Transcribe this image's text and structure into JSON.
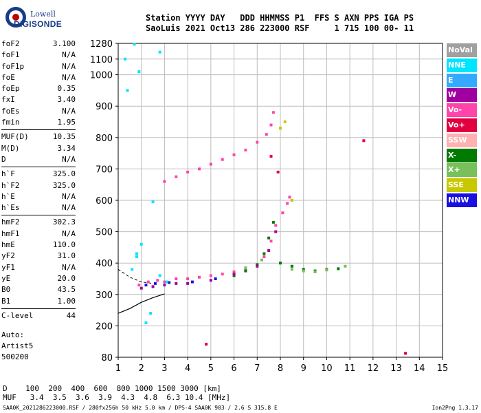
{
  "logo": {
    "line1": "Lowell",
    "line2": "DIGISONDE"
  },
  "header": {
    "line1": "Station YYYY DAY   DDD HHMMSS P1  FFS S AXN PPS IGA PS",
    "line2": "SaoLuis 2021 Oct13 286 223000 RSF     1 715 100 00- 11"
  },
  "params_group1": [
    {
      "label": "foF2",
      "value": "3.100"
    },
    {
      "label": "foF1",
      "value": "N/A"
    },
    {
      "label": "foF1p",
      "value": "N/A"
    },
    {
      "label": "foE",
      "value": "N/A"
    },
    {
      "label": "foEp",
      "value": "0.35"
    },
    {
      "label": "fxI",
      "value": "3.40"
    },
    {
      "label": "foEs",
      "value": "N/A"
    },
    {
      "label": "fmin",
      "value": "1.95"
    }
  ],
  "params_group2": [
    {
      "label": "MUF(D)",
      "value": "10.35"
    },
    {
      "label": "M(D)",
      "value": "3.34"
    },
    {
      "label": "D",
      "value": "N/A"
    }
  ],
  "params_group3": [
    {
      "label": "h`F",
      "value": "325.0"
    },
    {
      "label": "h`F2",
      "value": "325.0"
    },
    {
      "label": "h`E",
      "value": "N/A"
    },
    {
      "label": "h`Es",
      "value": "N/A"
    }
  ],
  "params_group4": [
    {
      "label": "hmF2",
      "value": "302.3"
    },
    {
      "label": "hmF1",
      "value": "N/A"
    },
    {
      "label": "hmE",
      "value": "110.0"
    },
    {
      "label": "yF2",
      "value": "31.0"
    },
    {
      "label": "yF1",
      "value": "N/A"
    },
    {
      "label": "yE",
      "value": "20.0"
    },
    {
      "label": "B0",
      "value": "43.5"
    },
    {
      "label": "B1",
      "value": "1.00"
    }
  ],
  "params_group5": [
    {
      "label": "C-level",
      "value": "44"
    }
  ],
  "autoscale": {
    "line1": "Auto:",
    "line2": "Artist5",
    "line3": "500200"
  },
  "legend": [
    {
      "label": "NoVal",
      "color": "#a0a0a0"
    },
    {
      "label": "NNE",
      "color": "#00e5ff"
    },
    {
      "label": "E",
      "color": "#33aaff"
    },
    {
      "label": "W",
      "color": "#a000a0"
    },
    {
      "label": "Vo-",
      "color": "#ff44aa"
    },
    {
      "label": "Vo+",
      "color": "#e00040"
    },
    {
      "label": "SSW",
      "color": "#ffb0b0"
    },
    {
      "label": "X-",
      "color": "#007a00"
    },
    {
      "label": "X+",
      "color": "#77c05a"
    },
    {
      "label": "SSE",
      "color": "#c8c800"
    },
    {
      "label": "NNW",
      "color": "#1a10e0"
    }
  ],
  "muf_table": {
    "line1": "D    100  200  400  600  800 1000 1500 3000 [km]",
    "line2": "MUF   3.4  3.5  3.6  3.9  4.3  4.8  6.3 10.4 [MHz]"
  },
  "footer": {
    "left": "SAA0K_2021286223000.RSF / 280fx256h 50 kHz 5.0 km / DPS-4 SAA0K 903 / 2.6 S 315.8 E",
    "right": "Ion2Png 1.3.17"
  },
  "chart_data": {
    "type": "scatter",
    "xlabel": "",
    "ylabel": "",
    "xlim": [
      1,
      15
    ],
    "ylim": [
      80,
      1280
    ],
    "x_ticks": [
      1,
      2,
      3,
      4,
      5,
      6,
      7,
      8,
      9,
      10,
      11,
      12,
      13,
      14,
      15
    ],
    "y_ticks": [
      80,
      200,
      300,
      400,
      500,
      600,
      700,
      800,
      900,
      1000,
      1100,
      1280
    ],
    "grid": true,
    "y_scale": "nonlinear",
    "y_axis_map": [
      [
        80,
        0
      ],
      [
        200,
        0.1
      ],
      [
        300,
        0.2
      ],
      [
        400,
        0.3
      ],
      [
        500,
        0.4
      ],
      [
        600,
        0.5
      ],
      [
        700,
        0.6
      ],
      [
        800,
        0.7
      ],
      [
        900,
        0.8
      ],
      [
        1000,
        0.9
      ],
      [
        1100,
        0.95
      ],
      [
        1280,
        1.0
      ]
    ],
    "series": [
      {
        "color": "#ff44aa",
        "points": [
          [
            1.9,
            330
          ],
          [
            2.3,
            340
          ],
          [
            2.7,
            345
          ],
          [
            3.0,
            340
          ],
          [
            3.5,
            350
          ],
          [
            4.0,
            350
          ],
          [
            4.5,
            355
          ],
          [
            5.0,
            360
          ],
          [
            5.5,
            365
          ],
          [
            6.0,
            372
          ],
          [
            6.5,
            380
          ],
          [
            7.0,
            395
          ],
          [
            7.3,
            420
          ],
          [
            7.6,
            470
          ],
          [
            7.8,
            520
          ],
          [
            8.1,
            560
          ],
          [
            8.3,
            590
          ],
          [
            8.4,
            610
          ]
        ]
      },
      {
        "color": "#ff44aa",
        "points": [
          [
            3.0,
            660
          ],
          [
            3.5,
            675
          ],
          [
            4.0,
            690
          ],
          [
            4.5,
            700
          ],
          [
            5.0,
            715
          ],
          [
            5.5,
            730
          ],
          [
            6.0,
            745
          ],
          [
            6.5,
            760
          ],
          [
            7.0,
            785
          ],
          [
            7.4,
            810
          ],
          [
            7.6,
            840
          ],
          [
            7.7,
            880
          ]
        ]
      },
      {
        "color": "#007a00",
        "points": [
          [
            6.0,
            360
          ],
          [
            6.5,
            375
          ],
          [
            7.0,
            395
          ],
          [
            7.3,
            430
          ],
          [
            7.5,
            480
          ],
          [
            7.7,
            530
          ],
          [
            8.0,
            400
          ],
          [
            8.5,
            390
          ],
          [
            9.0,
            380
          ],
          [
            9.5,
            375
          ],
          [
            10.0,
            380
          ],
          [
            10.5,
            382
          ]
        ]
      },
      {
        "color": "#a000a0",
        "points": [
          [
            2.0,
            320
          ],
          [
            2.5,
            325
          ],
          [
            3.0,
            330
          ],
          [
            3.5,
            335
          ],
          [
            4.0,
            335
          ],
          [
            5.0,
            345
          ],
          [
            6.0,
            365
          ],
          [
            7.0,
            390
          ],
          [
            7.5,
            440
          ],
          [
            7.8,
            500
          ]
        ]
      },
      {
        "color": "#1a10e0",
        "points": [
          [
            2.2,
            330
          ],
          [
            2.6,
            335
          ],
          [
            3.2,
            338
          ],
          [
            4.2,
            340
          ],
          [
            5.2,
            350
          ]
        ]
      },
      {
        "color": "#00e5ff",
        "points": [
          [
            1.3,
            1100
          ],
          [
            1.7,
            1270
          ],
          [
            1.9,
            1020
          ],
          [
            2.8,
            1180
          ],
          [
            1.4,
            950
          ],
          [
            1.8,
            430
          ],
          [
            2.0,
            460
          ],
          [
            2.8,
            360
          ],
          [
            3.1,
            340
          ],
          [
            1.6,
            380
          ],
          [
            2.2,
            210
          ],
          [
            2.4,
            240
          ],
          [
            1.8,
            420
          ],
          [
            2.5,
            595
          ]
        ]
      },
      {
        "color": "#77c05a",
        "points": [
          [
            8.5,
            380
          ],
          [
            9.0,
            375
          ],
          [
            9.5,
            372
          ],
          [
            10.0,
            378
          ],
          [
            10.8,
            390
          ],
          [
            6.5,
            385
          ],
          [
            7.2,
            410
          ]
        ]
      },
      {
        "color": "#c8c800",
        "points": [
          [
            8.0,
            830
          ],
          [
            8.2,
            850
          ],
          [
            8.5,
            600
          ]
        ]
      },
      {
        "color": "#e00040",
        "points": [
          [
            7.6,
            740
          ],
          [
            7.9,
            690
          ],
          [
            13.4,
            95
          ],
          [
            11.6,
            790
          ],
          [
            4.8,
            130
          ]
        ]
      }
    ],
    "profile_curve": [
      [
        1.0,
        240
      ],
      [
        1.5,
        255
      ],
      [
        2.0,
        275
      ],
      [
        2.5,
        290
      ],
      [
        3.0,
        302
      ]
    ],
    "profile_curve_dashed": [
      [
        1.0,
        380
      ],
      [
        1.5,
        355
      ],
      [
        2.0,
        340
      ],
      [
        2.5,
        335
      ]
    ]
  }
}
